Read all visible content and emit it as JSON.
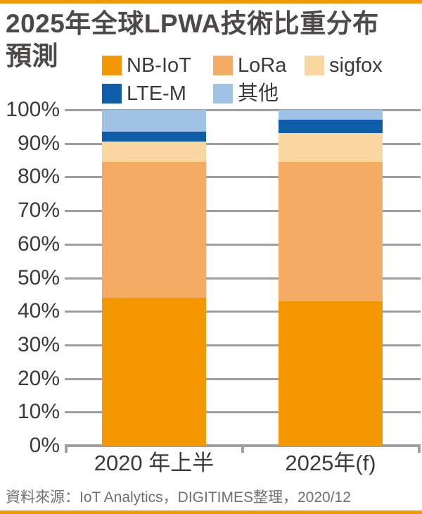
{
  "page": {
    "accent_color": "#F39800",
    "title_line1": "2025年全球LPWA技術比重分布",
    "title_line2": "預測",
    "source": "資料來源：IoT Analytics，DIGITIMES整理，2020/12"
  },
  "chart_data": {
    "type": "bar",
    "stacked": true,
    "unit": "%",
    "title": "2025年全球LPWA技術比重分布預測",
    "categories": [
      "2020 年上半",
      "2025年(f)"
    ],
    "series": [
      {
        "name": "NB-IoT",
        "color": "#F39800",
        "values": [
          44,
          43
        ]
      },
      {
        "name": "LoRa",
        "color": "#F4AC64",
        "values": [
          40.5,
          41.5
        ]
      },
      {
        "name": "sigfox",
        "color": "#FAD7A0",
        "values": [
          6,
          8.5
        ]
      },
      {
        "name": "LTE-M",
        "color": "#0F5CA8",
        "values": [
          3,
          4
        ]
      },
      {
        "name": "其他",
        "color": "#9FC2E5",
        "values": [
          6.5,
          3
        ]
      }
    ],
    "xlabel": "",
    "ylabel": "",
    "ylim": [
      0,
      100
    ],
    "ytick_step": 10,
    "ytick_labels": [
      "0%",
      "10%",
      "20%",
      "30%",
      "40%",
      "50%",
      "60%",
      "70%",
      "80%",
      "90%",
      "100%"
    ],
    "legend_position": "top",
    "grid": true,
    "gridline_color": "#9E9FA0"
  }
}
